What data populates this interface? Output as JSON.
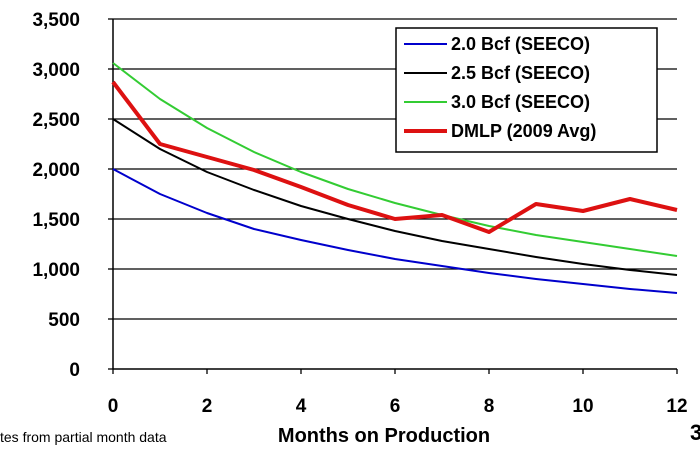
{
  "chart_data": {
    "type": "line",
    "title": "",
    "xlabel": "Months on Production",
    "ylabel": "",
    "xlim": [
      0,
      12
    ],
    "ylim": [
      0,
      3500
    ],
    "x_ticks": [
      0,
      2,
      4,
      6,
      8,
      10,
      12
    ],
    "y_ticks": [
      0,
      500,
      1000,
      1500,
      2000,
      2500,
      3000,
      3500
    ],
    "y_tick_labels": [
      "0",
      "500",
      "1,000",
      "1,500",
      "2,000",
      "2,500",
      "3,000",
      "3,500"
    ],
    "grid": "horizontal",
    "legend_position": "top-right",
    "x": [
      0,
      1,
      2,
      3,
      4,
      5,
      6,
      7,
      8,
      9,
      10,
      11,
      12
    ],
    "series": [
      {
        "name": "2.0 Bcf (SEECO)",
        "color": "#0000cc",
        "values": [
          2000,
          1750,
          1560,
          1400,
          1290,
          1190,
          1100,
          1030,
          960,
          900,
          850,
          800,
          760
        ]
      },
      {
        "name": "2.5 Bcf (SEECO)",
        "color": "#000000",
        "values": [
          2500,
          2200,
          1970,
          1790,
          1630,
          1500,
          1380,
          1280,
          1200,
          1120,
          1050,
          990,
          940
        ]
      },
      {
        "name": "3.0 Bcf (SEECO)",
        "color": "#33cc33",
        "values": [
          3060,
          2700,
          2410,
          2170,
          1970,
          1800,
          1660,
          1540,
          1430,
          1340,
          1270,
          1200,
          1130
        ]
      },
      {
        "name": "DMLP (2009 Avg)",
        "color": "#dd1111",
        "values": [
          2870,
          2250,
          2120,
          1990,
          1820,
          1640,
          1500,
          1540,
          1370,
          1650,
          1580,
          1700,
          1590
        ]
      }
    ]
  },
  "footer": {
    "note_text": "tes  from partial month data",
    "page_number": "3"
  }
}
